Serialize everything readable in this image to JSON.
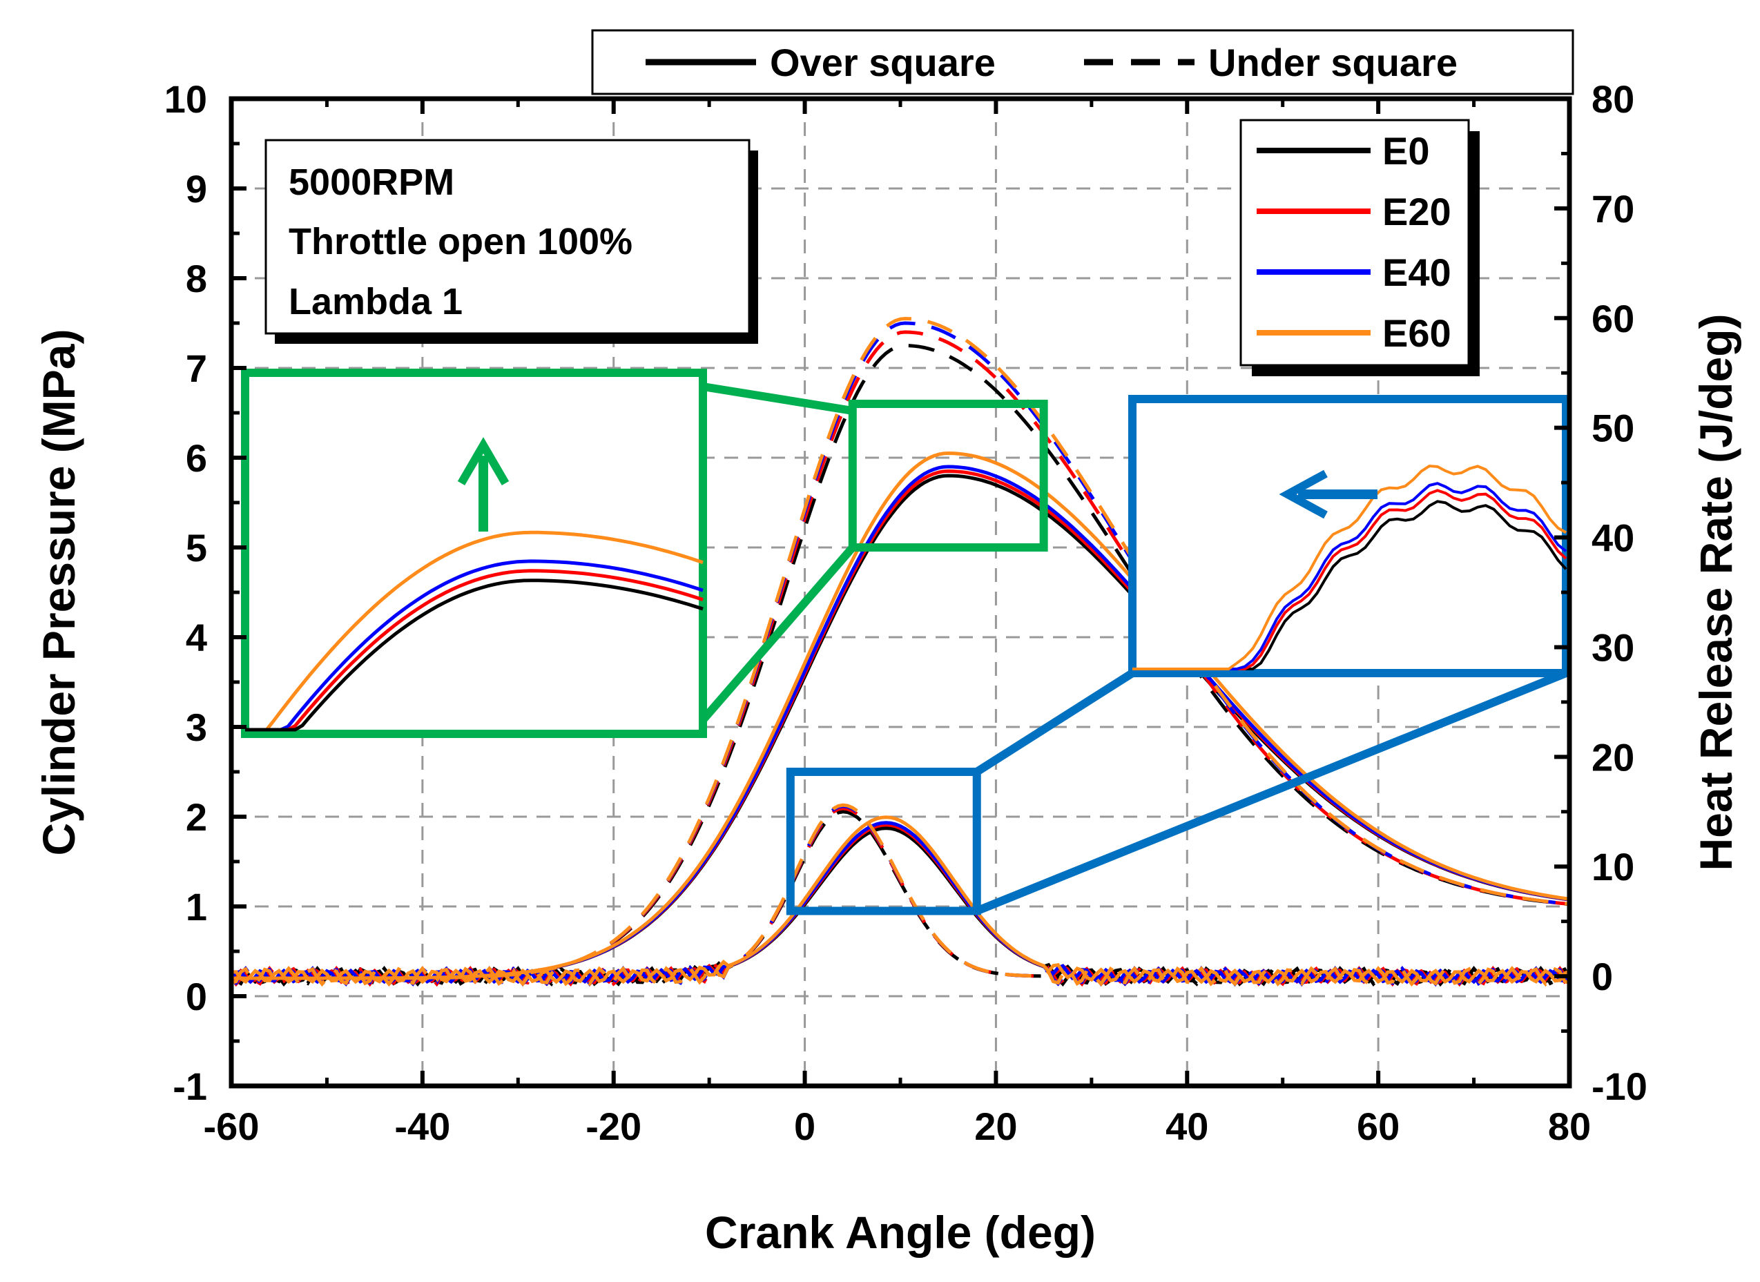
{
  "chart_data": {
    "type": "line",
    "xlabel": "Crank Angle (deg)",
    "ylabel_left": "Cylinder Pressure (MPa)",
    "ylabel_right": "Heat Release Rate (J/deg)",
    "xlim": [
      -60,
      80
    ],
    "ylim_left": [
      -1,
      10
    ],
    "ylim_right": [
      -10,
      80
    ],
    "x_ticks": [
      "-60",
      "-40",
      "-20",
      "0",
      "20",
      "40",
      "60",
      "80"
    ],
    "y_ticks_left": [
      "-1",
      "0",
      "1",
      "2",
      "3",
      "4",
      "5",
      "6",
      "7",
      "8",
      "9",
      "10"
    ],
    "y_ticks_right": [
      "-10",
      "0",
      "10",
      "20",
      "30",
      "40",
      "50",
      "60",
      "70",
      "80"
    ],
    "grid": true,
    "conditions": [
      "5000RPM",
      "Throttle open 100%",
      "Lambda 1"
    ],
    "style_legend": [
      {
        "label": "Over square",
        "dash": "solid"
      },
      {
        "label": "Under square",
        "dash": "dashed"
      }
    ],
    "fuel_legend": [
      {
        "label": "E0",
        "color": "#000000"
      },
      {
        "label": "E20",
        "color": "#ff0000"
      },
      {
        "label": "E40",
        "color": "#0000ff"
      },
      {
        "label": "E60",
        "color": "#ff8c1a"
      }
    ],
    "pressure_peaks_MPa": {
      "over_square": {
        "E0": 5.8,
        "E20": 5.85,
        "E40": 5.9,
        "E60": 6.05
      },
      "under_square": {
        "E0": 7.25,
        "E20": 7.4,
        "E40": 7.5,
        "E60": 7.55
      }
    },
    "pressure_peak_angle_deg": {
      "over_square": 15,
      "under_square": 10.5
    },
    "hrr_peaks_Jdeg": {
      "over_square": {
        "E0": 13.5,
        "E20": 13.8,
        "E40": 14.0,
        "E60": 14.5
      },
      "under_square": {
        "E0": 15.0,
        "E20": 15.3,
        "E40": 15.5,
        "E60": 15.6
      }
    },
    "hrr_peak_angle_deg": {
      "over_square": 8.5,
      "under_square": 4.0
    },
    "zoom_regions": [
      {
        "name": "pressure-peak",
        "color": "#00b050",
        "x_range": [
          5,
          25
        ],
        "y_range_left": [
          5.0,
          6.6
        ]
      },
      {
        "name": "hrr-peak",
        "color": "#0070c0",
        "x_range": [
          -1.5,
          18
        ],
        "y_range_left": [
          0.95,
          2.5
        ]
      }
    ]
  }
}
